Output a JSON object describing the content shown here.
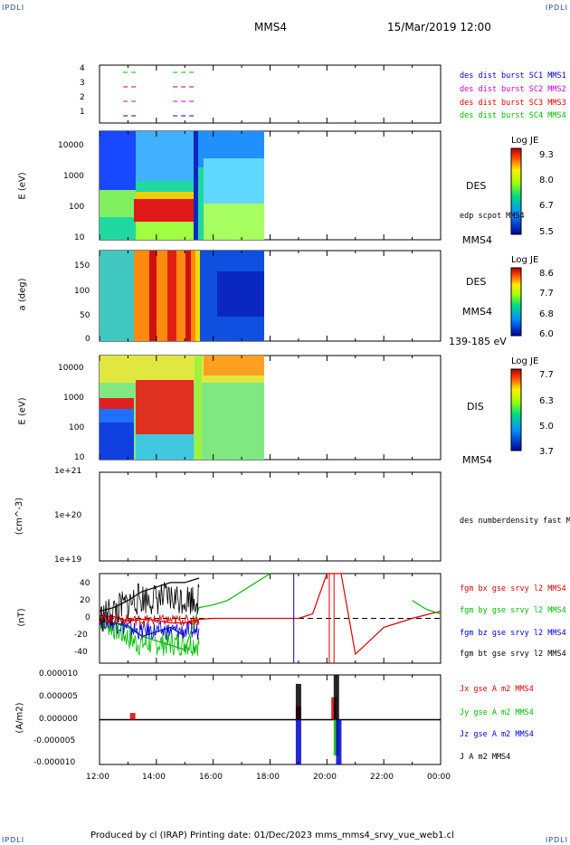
{
  "header": {
    "corner_tl": "IPDLI",
    "corner_tr": "IPDLI",
    "corner_bl": "IPDLI",
    "corner_br": "IPDLI",
    "spacecraft": "MMS4",
    "datetime": "15/Mar/2019 12:00"
  },
  "footer": {
    "text": "Produced by cl (IRAP)   Printing date: 01/Dec/2023   mms_mms4_srvy_vue_web1.cl"
  },
  "colors": {
    "c1": "#0000cc",
    "c2": "#cc00cc",
    "c3": "#dd0000",
    "c4": "#00bb00",
    "black": "#000000"
  },
  "x_axis": {
    "tick_labels": [
      "12:00",
      "14:00",
      "16:00",
      "18:00",
      "20:00",
      "22:00",
      "00:00"
    ]
  },
  "panels": {
    "burst": {
      "y_ticks": [
        "4",
        "3",
        "2",
        "1"
      ],
      "legend": [
        "des dist burst SC1 MMS1",
        "des dist burst SC2 MMS2",
        "des dist burst SC3 MMS3",
        "des dist burst SC4 MMS4"
      ]
    },
    "des_energy": {
      "ylabel": "E (eV)",
      "y_ticks": [
        "10000",
        "1000",
        "100",
        "10"
      ],
      "right_top": "DES",
      "right_mid": "edp scpot MMS4",
      "right_bottom": "MMS4",
      "colorbar": {
        "title": "Log JE",
        "ticks": [
          "9.3",
          "8.0",
          "6.7",
          "5.5"
        ]
      }
    },
    "des_pitch": {
      "ylabel": "a (deg)",
      "y_ticks": [
        "150",
        "100",
        "50",
        "0"
      ],
      "right_top": "DES",
      "right_mid": "MMS4",
      "right_bottom": "139-185 eV",
      "colorbar": {
        "title": "Log JE",
        "ticks": [
          "8.6",
          "7.7",
          "6.8",
          "6.0"
        ]
      }
    },
    "dis_energy": {
      "ylabel": "E (eV)",
      "y_ticks": [
        "10000",
        "1000",
        "100",
        "10"
      ],
      "right_top": "DIS",
      "right_bottom": "MMS4",
      "colorbar": {
        "title": "Log JE",
        "ticks": [
          "7.7",
          "6.3",
          "5.0",
          "3.7"
        ]
      }
    },
    "density": {
      "ylabel": "(cm^-3)",
      "y_ticks": [
        "1e+21",
        "1e+20",
        "1e+19"
      ],
      "legend": [
        "des numberdensity fast M"
      ]
    },
    "bfield": {
      "ylabel": "(nT)",
      "y_ticks": [
        "40",
        "20",
        "0",
        "-20",
        "-40"
      ],
      "legend": [
        "fgm bx gse srvy l2 MMS4",
        "fgm by gse srvy l2 MMS4",
        "fgm bz gse srvy l2 MMS4",
        "fgm bt gse srvy l2 MMS4"
      ]
    },
    "current": {
      "ylabel": "(A/m2)",
      "y_ticks": [
        "0.000010",
        "0.000005",
        "0.000000",
        "-0.000005",
        "-0.000010"
      ],
      "legend": [
        "Jx gse A m2 MMS4",
        "Jy gse A m2 MMS4",
        "Jz gse A m2 MMS4",
        "J A m2 MMS4"
      ]
    }
  },
  "chart_data": [
    {
      "type": "scatter",
      "title": "",
      "xlabel": "",
      "ylabel": "",
      "ylim": [
        0.5,
        4.5
      ],
      "series": [
        {
          "name": "des dist burst SC1 MMS1",
          "segments": [
            [
              "12:50",
              "13:20",
              1
            ],
            [
              "14:35",
              "15:25",
              1
            ]
          ]
        },
        {
          "name": "des dist burst SC2 MMS2",
          "segments": [
            [
              "12:50",
              "13:20",
              2
            ],
            [
              "14:35",
              "15:25",
              2
            ]
          ]
        },
        {
          "name": "des dist burst SC3 MMS3",
          "segments": [
            [
              "12:50",
              "13:20",
              3
            ],
            [
              "14:35",
              "15:25",
              3
            ]
          ]
        },
        {
          "name": "des dist burst SC4 MMS4",
          "segments": [
            [
              "12:50",
              "13:20",
              4
            ],
            [
              "14:35",
              "15:25",
              4
            ]
          ]
        }
      ]
    },
    {
      "type": "heatmap",
      "title": "",
      "ylabel": "E (eV)",
      "y_scale": "log",
      "ylim": [
        10,
        30000
      ],
      "data_coverage": [
        "12:00",
        "17:45"
      ],
      "colorbar": {
        "title": "Log JE",
        "range": [
          5.5,
          9.3
        ]
      },
      "features": [
        {
          "time": [
            "13:15",
            "15:15"
          ],
          "energy_eV": [
            40,
            150
          ],
          "level": "9.3"
        },
        {
          "time": [
            "12:00",
            "13:15"
          ],
          "energy_eV": [
            100,
            1000
          ],
          "level": "7.0"
        },
        {
          "time": [
            "12:00",
            "17:45"
          ],
          "energy_eV": [
            1000,
            20000
          ],
          "level": "5.5-6.7"
        }
      ]
    },
    {
      "type": "heatmap",
      "title": "",
      "ylabel": "a (deg)",
      "ylim": [
        0,
        180
      ],
      "data_coverage": [
        "12:00",
        "17:45"
      ],
      "colorbar": {
        "title": "Log JE",
        "range": [
          6.0,
          8.6
        ]
      },
      "features": [
        {
          "time": [
            "13:15",
            "15:15"
          ],
          "pitch_deg": [
            0,
            180
          ],
          "level": "8.6"
        },
        {
          "time": [
            "15:30",
            "17:45"
          ],
          "pitch_deg": [
            0,
            180
          ],
          "level": "6.0-6.8"
        }
      ]
    },
    {
      "type": "heatmap",
      "title": "",
      "ylabel": "E (eV)",
      "y_scale": "log",
      "ylim": [
        10,
        30000
      ],
      "data_coverage": [
        "12:00",
        "17:45"
      ],
      "colorbar": {
        "title": "Log JE",
        "range": [
          3.7,
          7.7
        ]
      },
      "features": [
        {
          "time": [
            "12:00",
            "13:10"
          ],
          "energy_eV": [
            500,
            900
          ],
          "level": "7.7"
        },
        {
          "time": [
            "13:15",
            "15:10"
          ],
          "energy_eV": [
            100,
            3000
          ],
          "level": "7.7"
        },
        {
          "time": [
            "15:30",
            "17:45"
          ],
          "energy_eV": [
            5000,
            20000
          ],
          "level": "6.3-7.0"
        }
      ]
    },
    {
      "type": "line",
      "title": "",
      "ylabel": "(cm^-3)",
      "y_scale": "log",
      "ylim": [
        1e+19,
        1e+21
      ],
      "series": [
        {
          "name": "des numberdensity fast M",
          "values": []
        }
      ]
    },
    {
      "type": "line",
      "title": "",
      "ylabel": "(nT)",
      "ylim": [
        -50,
        50
      ],
      "x": [
        "12:00",
        "12:30",
        "13:00",
        "13:30",
        "14:00",
        "14:30",
        "15:00",
        "15:30",
        "16:00",
        "16:30",
        "17:00",
        "17:30",
        "18:00",
        "18:30",
        "19:00",
        "19:30",
        "20:00",
        "20:30",
        "21:00",
        "21:30",
        "22:00",
        "22:30",
        "23:00",
        "23:30",
        "24:00"
      ],
      "series": [
        {
          "name": "fgm bx gse srvy l2 MMS4",
          "values": [
            3,
            2,
            -3,
            -1,
            -2,
            -5,
            -5,
            -1,
            0,
            0,
            0,
            0,
            0,
            0,
            0,
            5,
            60,
            60,
            -40,
            -25,
            -10,
            -5,
            0,
            4,
            8
          ]
        },
        {
          "name": "fgm by gse srvy l2 MMS4",
          "values": [
            -3,
            -5,
            -10,
            -20,
            -25,
            -30,
            -35,
            12,
            15,
            20,
            30,
            40,
            50,
            null,
            null,
            null,
            null,
            null,
            null,
            null,
            null,
            null,
            20,
            10,
            5
          ]
        },
        {
          "name": "fgm bz gse srvy l2 MMS4",
          "values": [
            -2,
            -5,
            -8,
            -20,
            -15,
            -10,
            -20,
            null,
            null,
            null,
            null,
            null,
            null,
            null,
            null,
            null,
            null,
            null,
            null,
            null,
            null,
            null,
            null,
            null,
            null
          ]
        },
        {
          "name": "fgm bt gse srvy l2 MMS4",
          "values": [
            8,
            12,
            20,
            30,
            35,
            40,
            40,
            45,
            null,
            null,
            null,
            null,
            null,
            null,
            null,
            null,
            null,
            null,
            null,
            null,
            null,
            null,
            null,
            null,
            null
          ]
        }
      ],
      "annotations": [
        {
          "type": "dashed_line",
          "y": 0
        }
      ]
    },
    {
      "type": "line",
      "title": "",
      "ylabel": "(A/m2)",
      "ylim": [
        -1e-05,
        1e-05
      ],
      "series": [
        {
          "name": "Jx gse A m2 MMS4",
          "burst_peaks": [
            [
              "13:10",
              1.5e-06
            ],
            [
              "19:00",
              3e-06
            ],
            [
              "20:15",
              5e-06
            ]
          ]
        },
        {
          "name": "Jy gse A m2 MMS4",
          "burst_peaks": [
            [
              "20:20",
              -8e-06
            ]
          ]
        },
        {
          "name": "Jz gse A m2 MMS4",
          "burst_peaks": [
            [
              "19:00",
              -1e-05
            ],
            [
              "20:25",
              -1e-05
            ]
          ]
        },
        {
          "name": "J A m2 MMS4",
          "burst_peaks": [
            [
              "19:00",
              8e-06
            ],
            [
              "20:20",
              1e-05
            ]
          ]
        }
      ]
    }
  ]
}
